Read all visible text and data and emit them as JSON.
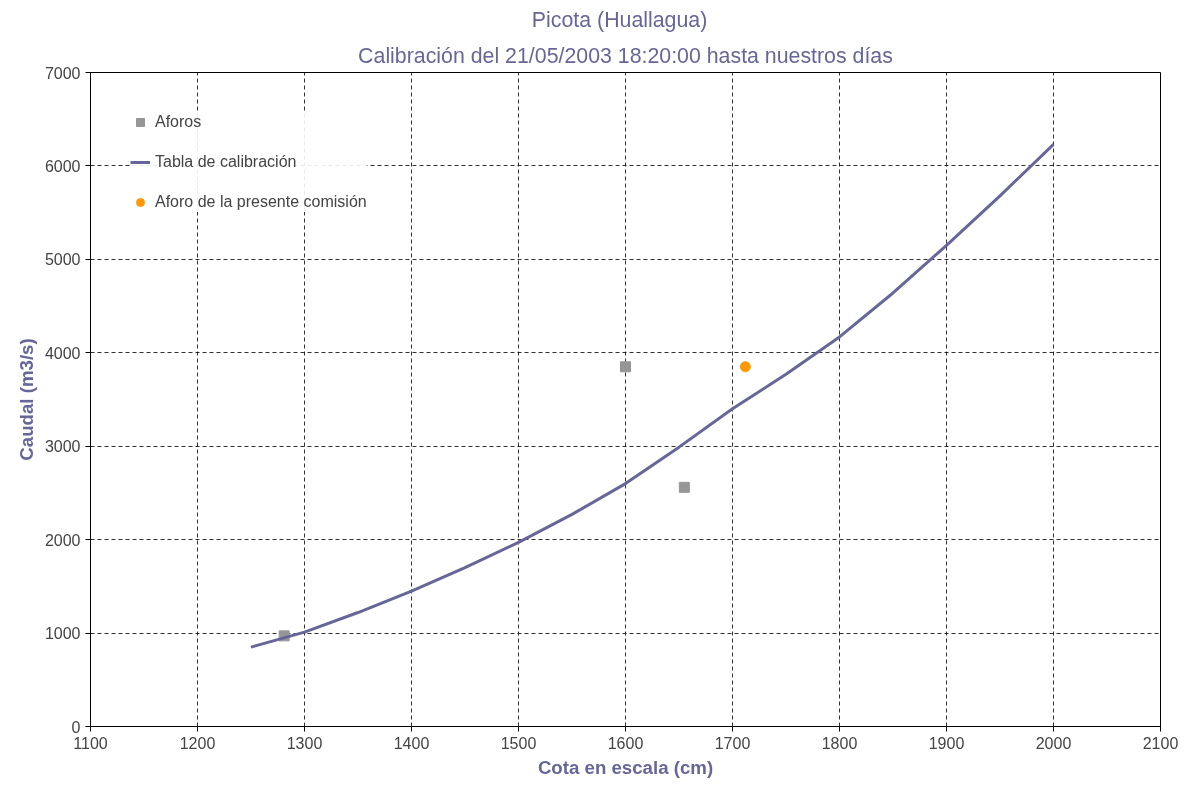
{
  "chart_data": {
    "type": "scatter",
    "title": "Picota   (Huallagua)",
    "subtitle": "Calibración del 21/05/2003 18:20:00 hasta nuestros días",
    "xlabel": "Cota en escala (cm)",
    "ylabel": "Caudal (m3/s)",
    "xlim": [
      1100,
      2100
    ],
    "ylim": [
      0,
      7000
    ],
    "xticks": [
      1100,
      1200,
      1300,
      1400,
      1500,
      1600,
      1700,
      1800,
      1900,
      2000,
      2100
    ],
    "yticks": [
      0,
      1000,
      2000,
      3000,
      4000,
      5000,
      6000,
      7000
    ],
    "grid": true,
    "legend": "top left",
    "series": [
      {
        "name": "Aforos",
        "marker": "square",
        "color": "#969696",
        "x": [
          1281,
          1600,
          1655
        ],
        "values": [
          970,
          3850,
          2560
        ]
      },
      {
        "name": "Tabla de calibración",
        "type": "line",
        "marker": "none",
        "line_style": "solid",
        "color": "#666699",
        "x": [
          1250,
          1300,
          1350,
          1400,
          1450,
          1500,
          1550,
          1600,
          1650,
          1700,
          1750,
          1800,
          1850,
          1900,
          1950,
          2000
        ],
        "values": [
          850,
          1010,
          1220,
          1450,
          1700,
          1970,
          2270,
          2600,
          2990,
          3400,
          3770,
          4170,
          4640,
          5150,
          5680,
          6230
        ]
      },
      {
        "name": "Aforo de la presente comisión",
        "marker": "circle",
        "color": "#ff9900",
        "x": [
          1712
        ],
        "values": [
          3850
        ]
      }
    ]
  }
}
